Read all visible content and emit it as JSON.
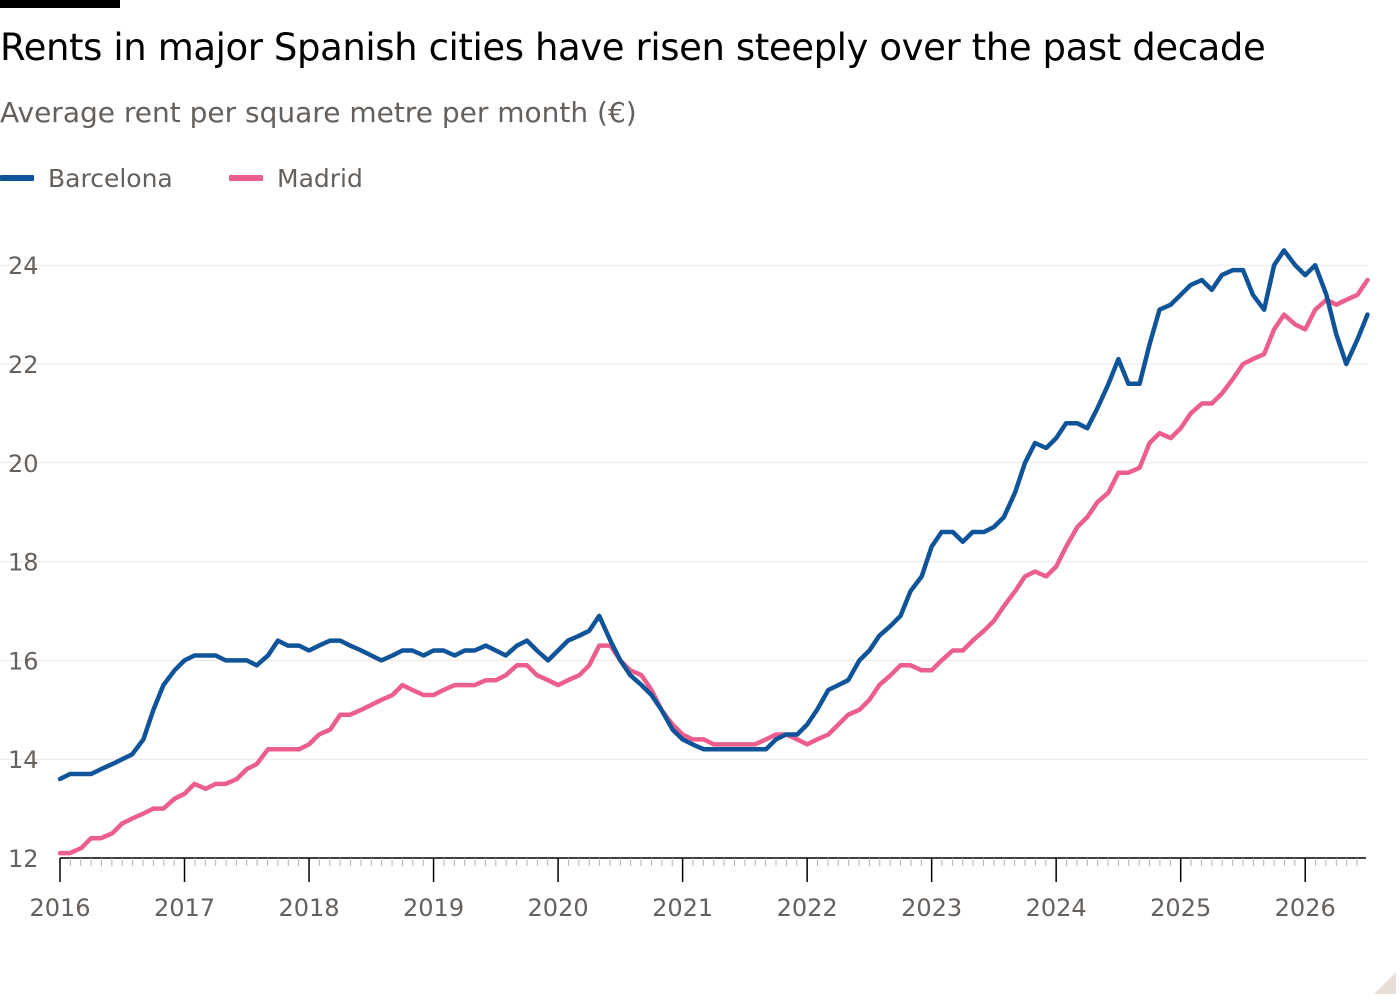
{
  "header": {
    "title": "Rents in major Spanish cities have risen steeply over the past decade",
    "subtitle": "Average rent per square metre per month (€)"
  },
  "colors": {
    "barcelona": "#0f5499",
    "madrid": "#eb5e8d",
    "grid": "#ebe6e1",
    "axis": "#000000",
    "tick_text": "#66605c"
  },
  "chart_data": {
    "type": "line",
    "title": "Rents in major Spanish cities have risen steeply over the past decade",
    "subtitle": "Average rent per square metre per month (€)",
    "xlabel": "",
    "ylabel": "",
    "x_unit": "year",
    "x_ticks": [
      2016,
      2017,
      2018,
      2019,
      2020,
      2021,
      2022,
      2023,
      2024,
      2025,
      2026
    ],
    "x_start": 2016,
    "x_end": 2026.44,
    "ylim": [
      12,
      24.6
    ],
    "y_ticks": [
      12,
      14,
      16,
      18,
      20,
      22,
      24
    ],
    "grid": "horizontal",
    "legend_position": "top-left",
    "series": [
      {
        "name": "Barcelona",
        "color": "#0f5499",
        "points": [
          [
            2016.0,
            13.6
          ],
          [
            2016.08,
            13.7
          ],
          [
            2016.17,
            13.7
          ],
          [
            2016.25,
            13.7
          ],
          [
            2016.33,
            13.8
          ],
          [
            2016.42,
            13.9
          ],
          [
            2016.5,
            14.0
          ],
          [
            2016.58,
            14.1
          ],
          [
            2016.67,
            14.4
          ],
          [
            2016.75,
            15.0
          ],
          [
            2016.83,
            15.5
          ],
          [
            2016.92,
            15.8
          ],
          [
            2017.0,
            16.0
          ],
          [
            2017.08,
            16.1
          ],
          [
            2017.17,
            16.1
          ],
          [
            2017.25,
            16.1
          ],
          [
            2017.33,
            16.0
          ],
          [
            2017.42,
            16.0
          ],
          [
            2017.5,
            16.0
          ],
          [
            2017.58,
            15.9
          ],
          [
            2017.67,
            16.1
          ],
          [
            2017.75,
            16.4
          ],
          [
            2017.83,
            16.3
          ],
          [
            2017.92,
            16.3
          ],
          [
            2018.0,
            16.2
          ],
          [
            2018.08,
            16.3
          ],
          [
            2018.17,
            16.4
          ],
          [
            2018.25,
            16.4
          ],
          [
            2018.33,
            16.3
          ],
          [
            2018.42,
            16.2
          ],
          [
            2018.5,
            16.1
          ],
          [
            2018.58,
            16.0
          ],
          [
            2018.67,
            16.1
          ],
          [
            2018.75,
            16.2
          ],
          [
            2018.83,
            16.2
          ],
          [
            2018.92,
            16.1
          ],
          [
            2019.0,
            16.2
          ],
          [
            2019.08,
            16.2
          ],
          [
            2019.17,
            16.1
          ],
          [
            2019.25,
            16.2
          ],
          [
            2019.33,
            16.2
          ],
          [
            2019.42,
            16.3
          ],
          [
            2019.5,
            16.2
          ],
          [
            2019.58,
            16.1
          ],
          [
            2019.67,
            16.3
          ],
          [
            2019.75,
            16.4
          ],
          [
            2019.83,
            16.2
          ],
          [
            2019.92,
            16.0
          ],
          [
            2020.0,
            16.2
          ],
          [
            2020.08,
            16.4
          ],
          [
            2020.17,
            16.5
          ],
          [
            2020.25,
            16.6
          ],
          [
            2020.33,
            16.9
          ],
          [
            2020.42,
            16.4
          ],
          [
            2020.5,
            16.0
          ],
          [
            2020.58,
            15.7
          ],
          [
            2020.67,
            15.5
          ],
          [
            2020.75,
            15.3
          ],
          [
            2020.83,
            15.0
          ],
          [
            2020.92,
            14.6
          ],
          [
            2021.0,
            14.4
          ],
          [
            2021.08,
            14.3
          ],
          [
            2021.17,
            14.2
          ],
          [
            2021.25,
            14.2
          ],
          [
            2021.33,
            14.2
          ],
          [
            2021.42,
            14.2
          ],
          [
            2021.5,
            14.2
          ],
          [
            2021.58,
            14.2
          ],
          [
            2021.67,
            14.2
          ],
          [
            2021.75,
            14.4
          ],
          [
            2021.83,
            14.5
          ],
          [
            2021.92,
            14.5
          ],
          [
            2022.0,
            14.7
          ],
          [
            2022.08,
            15.0
          ],
          [
            2022.17,
            15.4
          ],
          [
            2022.25,
            15.5
          ],
          [
            2022.33,
            15.6
          ],
          [
            2022.42,
            16.0
          ],
          [
            2022.5,
            16.2
          ],
          [
            2022.58,
            16.5
          ],
          [
            2022.67,
            16.7
          ],
          [
            2022.75,
            16.9
          ],
          [
            2022.83,
            17.4
          ],
          [
            2022.92,
            17.7
          ],
          [
            2023.0,
            18.3
          ],
          [
            2023.08,
            18.6
          ],
          [
            2023.17,
            18.6
          ],
          [
            2023.25,
            18.4
          ],
          [
            2023.33,
            18.6
          ],
          [
            2023.42,
            18.6
          ],
          [
            2023.5,
            18.7
          ],
          [
            2023.58,
            18.9
          ],
          [
            2023.67,
            19.4
          ],
          [
            2023.75,
            20.0
          ],
          [
            2023.83,
            20.4
          ],
          [
            2023.92,
            20.3
          ],
          [
            2024.0,
            20.5
          ],
          [
            2024.08,
            20.8
          ],
          [
            2024.17,
            20.8
          ],
          [
            2024.25,
            20.7
          ],
          [
            2024.33,
            21.1
          ],
          [
            2024.42,
            21.6
          ],
          [
            2024.5,
            22.1
          ],
          [
            2024.58,
            21.6
          ],
          [
            2024.67,
            21.6
          ],
          [
            2024.75,
            22.4
          ],
          [
            2024.83,
            23.1
          ],
          [
            2024.92,
            23.2
          ],
          [
            2025.0,
            23.4
          ],
          [
            2025.08,
            23.6
          ],
          [
            2025.17,
            23.7
          ],
          [
            2025.25,
            23.5
          ],
          [
            2025.33,
            23.8
          ],
          [
            2025.42,
            23.9
          ],
          [
            2025.5,
            23.9
          ],
          [
            2025.58,
            23.4
          ],
          [
            2025.67,
            23.1
          ],
          [
            2025.75,
            24.0
          ],
          [
            2025.83,
            24.3
          ],
          [
            2025.92,
            24.0
          ],
          [
            2026.0,
            23.8
          ],
          [
            2026.08,
            24.0
          ],
          [
            2026.17,
            23.4
          ],
          [
            2026.25,
            22.6
          ],
          [
            2026.33,
            22.0
          ],
          [
            2026.42,
            22.5
          ],
          [
            2026.5,
            23.0
          ]
        ]
      },
      {
        "name": "Madrid",
        "color": "#eb5e8d",
        "points": [
          [
            2016.0,
            12.1
          ],
          [
            2016.08,
            12.1
          ],
          [
            2016.17,
            12.2
          ],
          [
            2016.25,
            12.4
          ],
          [
            2016.33,
            12.4
          ],
          [
            2016.42,
            12.5
          ],
          [
            2016.5,
            12.7
          ],
          [
            2016.58,
            12.8
          ],
          [
            2016.67,
            12.9
          ],
          [
            2016.75,
            13.0
          ],
          [
            2016.83,
            13.0
          ],
          [
            2016.92,
            13.2
          ],
          [
            2017.0,
            13.3
          ],
          [
            2017.08,
            13.5
          ],
          [
            2017.17,
            13.4
          ],
          [
            2017.25,
            13.5
          ],
          [
            2017.33,
            13.5
          ],
          [
            2017.42,
            13.6
          ],
          [
            2017.5,
            13.8
          ],
          [
            2017.58,
            13.9
          ],
          [
            2017.67,
            14.2
          ],
          [
            2017.75,
            14.2
          ],
          [
            2017.83,
            14.2
          ],
          [
            2017.92,
            14.2
          ],
          [
            2018.0,
            14.3
          ],
          [
            2018.08,
            14.5
          ],
          [
            2018.17,
            14.6
          ],
          [
            2018.25,
            14.9
          ],
          [
            2018.33,
            14.9
          ],
          [
            2018.42,
            15.0
          ],
          [
            2018.5,
            15.1
          ],
          [
            2018.58,
            15.2
          ],
          [
            2018.67,
            15.3
          ],
          [
            2018.75,
            15.5
          ],
          [
            2018.83,
            15.4
          ],
          [
            2018.92,
            15.3
          ],
          [
            2019.0,
            15.3
          ],
          [
            2019.08,
            15.4
          ],
          [
            2019.17,
            15.5
          ],
          [
            2019.25,
            15.5
          ],
          [
            2019.33,
            15.5
          ],
          [
            2019.42,
            15.6
          ],
          [
            2019.5,
            15.6
          ],
          [
            2019.58,
            15.7
          ],
          [
            2019.67,
            15.9
          ],
          [
            2019.75,
            15.9
          ],
          [
            2019.83,
            15.7
          ],
          [
            2019.92,
            15.6
          ],
          [
            2020.0,
            15.5
          ],
          [
            2020.08,
            15.6
          ],
          [
            2020.17,
            15.7
          ],
          [
            2020.25,
            15.9
          ],
          [
            2020.33,
            16.3
          ],
          [
            2020.42,
            16.3
          ],
          [
            2020.5,
            16.0
          ],
          [
            2020.58,
            15.8
          ],
          [
            2020.67,
            15.7
          ],
          [
            2020.75,
            15.4
          ],
          [
            2020.83,
            15.0
          ],
          [
            2020.92,
            14.7
          ],
          [
            2021.0,
            14.5
          ],
          [
            2021.08,
            14.4
          ],
          [
            2021.17,
            14.4
          ],
          [
            2021.25,
            14.3
          ],
          [
            2021.33,
            14.3
          ],
          [
            2021.42,
            14.3
          ],
          [
            2021.5,
            14.3
          ],
          [
            2021.58,
            14.3
          ],
          [
            2021.67,
            14.4
          ],
          [
            2021.75,
            14.5
          ],
          [
            2021.83,
            14.5
          ],
          [
            2021.92,
            14.4
          ],
          [
            2022.0,
            14.3
          ],
          [
            2022.08,
            14.4
          ],
          [
            2022.17,
            14.5
          ],
          [
            2022.25,
            14.7
          ],
          [
            2022.33,
            14.9
          ],
          [
            2022.42,
            15.0
          ],
          [
            2022.5,
            15.2
          ],
          [
            2022.58,
            15.5
          ],
          [
            2022.67,
            15.7
          ],
          [
            2022.75,
            15.9
          ],
          [
            2022.83,
            15.9
          ],
          [
            2022.92,
            15.8
          ],
          [
            2023.0,
            15.8
          ],
          [
            2023.08,
            16.0
          ],
          [
            2023.17,
            16.2
          ],
          [
            2023.25,
            16.2
          ],
          [
            2023.33,
            16.4
          ],
          [
            2023.42,
            16.6
          ],
          [
            2023.5,
            16.8
          ],
          [
            2023.58,
            17.1
          ],
          [
            2023.67,
            17.4
          ],
          [
            2023.75,
            17.7
          ],
          [
            2023.83,
            17.8
          ],
          [
            2023.92,
            17.7
          ],
          [
            2024.0,
            17.9
          ],
          [
            2024.08,
            18.3
          ],
          [
            2024.17,
            18.7
          ],
          [
            2024.25,
            18.9
          ],
          [
            2024.33,
            19.2
          ],
          [
            2024.42,
            19.4
          ],
          [
            2024.5,
            19.8
          ],
          [
            2024.58,
            19.8
          ],
          [
            2024.67,
            19.9
          ],
          [
            2024.75,
            20.4
          ],
          [
            2024.83,
            20.6
          ],
          [
            2024.92,
            20.5
          ],
          [
            2025.0,
            20.7
          ],
          [
            2025.08,
            21.0
          ],
          [
            2025.17,
            21.2
          ],
          [
            2025.25,
            21.2
          ],
          [
            2025.33,
            21.4
          ],
          [
            2025.42,
            21.7
          ],
          [
            2025.5,
            22.0
          ],
          [
            2025.58,
            22.1
          ],
          [
            2025.67,
            22.2
          ],
          [
            2025.75,
            22.7
          ],
          [
            2025.83,
            23.0
          ],
          [
            2025.92,
            22.8
          ],
          [
            2026.0,
            22.7
          ],
          [
            2026.08,
            23.1
          ],
          [
            2026.17,
            23.3
          ],
          [
            2026.25,
            23.2
          ],
          [
            2026.33,
            23.3
          ],
          [
            2026.42,
            23.4
          ],
          [
            2026.5,
            23.7
          ]
        ]
      }
    ]
  }
}
